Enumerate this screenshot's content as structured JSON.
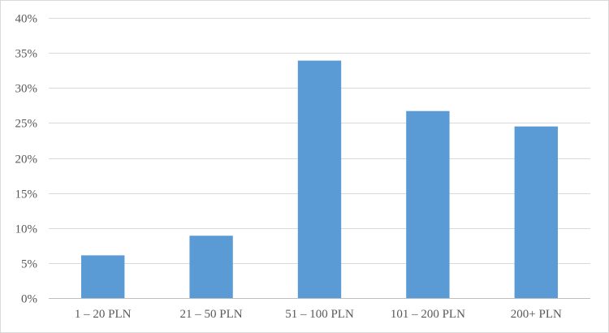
{
  "chart_data": {
    "type": "bar",
    "categories": [
      "1 – 20 PLN",
      "21 – 50 PLN",
      "51 – 100 PLN",
      "101 – 200 PLN",
      "200+ PLN"
    ],
    "values": [
      6.1,
      8.9,
      33.9,
      26.7,
      24.5
    ],
    "value_unit": "%",
    "title": "",
    "xlabel": "",
    "ylabel": "",
    "ylim": [
      0,
      40
    ],
    "yticks": [
      "0%",
      "5%",
      "10%",
      "15%",
      "20%",
      "25%",
      "30%",
      "35%",
      "40%"
    ],
    "grid": true,
    "legend": "none",
    "bar_color": "#5b9bd5"
  }
}
